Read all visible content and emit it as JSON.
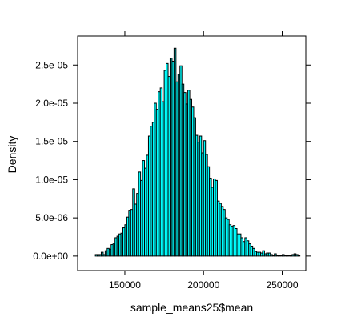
{
  "chart_data": {
    "type": "histogram",
    "xlabel": "sample_means25$mean",
    "ylabel": "Density",
    "xlim": [
      120000,
      265000
    ],
    "ylim": [
      -1.9e-06,
      2.88e-05
    ],
    "x_ticks": [
      150000,
      200000,
      250000
    ],
    "x_tick_labels": [
      "150000",
      "200000",
      "250000"
    ],
    "y_ticks": [
      0,
      5e-06,
      1e-05,
      1.5e-05,
      2e-05,
      2.5e-05
    ],
    "y_tick_labels": [
      "0.0e+00",
      "5.0e-06",
      "1.0e-05",
      "1.5e-05",
      "2.0e-05",
      "2.5e-05"
    ],
    "bin_width": 1250,
    "x_start": 131250,
    "densities": [
      2e-07,
      2e-07,
      2e-07,
      5e-07,
      2e-07,
      7e-07,
      1e-06,
      9e-07,
      1.5e-06,
      1.7e-06,
      2.4e-06,
      2.6e-06,
      2.9e-06,
      3e-06,
      3.7e-06,
      4.1e-06,
      5.1e-06,
      6e-06,
      6.1e-06,
      8.8e-06,
      6.8e-06,
      8.2e-06,
      1.1e-05,
      9.9e-06,
      1.25e-05,
      1.15e-05,
      1.32e-05,
      1.57e-05,
      1.7e-05,
      1.75e-05,
      2e-05,
      1.92e-05,
      2.15e-05,
      2.2e-05,
      2.02e-05,
      2.43e-05,
      2.52e-05,
      2.35e-05,
      2.59e-05,
      2.55e-05,
      2.72e-05,
      2.28e-05,
      2.38e-05,
      2.49e-05,
      2.25e-05,
      2.14e-05,
      1.99e-05,
      2.17e-05,
      2.05e-05,
      1.95e-05,
      1.81e-05,
      1.58e-05,
      1.49e-05,
      1.57e-05,
      1.35e-05,
      1.51e-05,
      1.33e-05,
      1.17e-05,
      1.02e-05,
      9e-06,
      1.01e-05,
      9.9e-06,
      7.2e-06,
      6.9e-06,
      6.5e-06,
      6.1e-06,
      5e-06,
      4.8e-06,
      4.1e-06,
      3.9e-06,
      4e-06,
      3.6e-06,
      2.9e-06,
      2.9e-06,
      2.4e-06,
      1.9e-06,
      2.4e-06,
      2e-06,
      1.6e-06,
      1.3e-06,
      1e-06,
      6e-07,
      5e-07,
      5e-07,
      4e-07,
      7e-07,
      3e-07,
      4e-07,
      4e-07,
      2e-07,
      1e-07,
      3e-07,
      1e-07,
      1e-07,
      1e-07,
      2e-07,
      1e-07,
      1e-07,
      1e-07,
      1e-07,
      2e-07,
      3e-07,
      2e-07,
      1e-07
    ],
    "colors": {
      "bar_fill": "#00ffff",
      "bar_stroke": "#000000",
      "panel_border": "#000000"
    },
    "grid": false
  }
}
